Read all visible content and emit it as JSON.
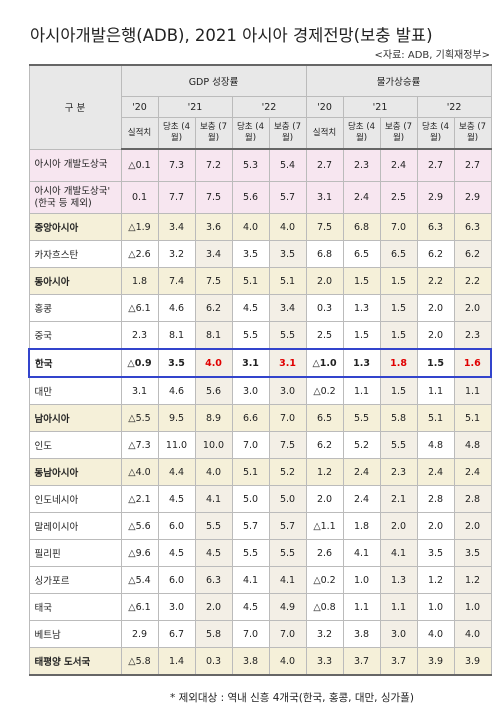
{
  "header": {
    "title": "아시아개발은행(ADB), 2021 아시아 경제전망(보충 발표)",
    "source": "<자료: ADB, 기획재정부>"
  },
  "table": {
    "corner": "구 분",
    "gdp": "GDP 성장률",
    "cpi": "물가상승률",
    "years": [
      "'20",
      "'21",
      "'22",
      "'20",
      "'21",
      "'22"
    ],
    "sub": [
      "실적치",
      "당초 (4월)",
      "보충 (7월)",
      "당초 (4월)",
      "보충 (7월)",
      "실적치",
      "당초 (4월)",
      "보충 (7월)",
      "당초 (4월)",
      "보충 (7월)"
    ],
    "rows": [
      [
        "아시아 개발도상국",
        "△0.1",
        "7.3",
        "7.2",
        "5.3",
        "5.4",
        "2.7",
        "2.3",
        "2.4",
        "2.7",
        "2.7"
      ],
      [
        "아시아 개발도상국' (한국 등 제외)",
        "0.1",
        "7.7",
        "7.5",
        "5.6",
        "5.7",
        "3.1",
        "2.4",
        "2.5",
        "2.9",
        "2.9"
      ],
      [
        "중앙아시아",
        "△1.9",
        "3.4",
        "3.6",
        "4.0",
        "4.0",
        "7.5",
        "6.8",
        "7.0",
        "6.3",
        "6.3"
      ],
      [
        "카자흐스탄",
        "△2.6",
        "3.2",
        "3.4",
        "3.5",
        "3.5",
        "6.8",
        "6.5",
        "6.5",
        "6.2",
        "6.2"
      ],
      [
        "동아시아",
        "1.8",
        "7.4",
        "7.5",
        "5.1",
        "5.1",
        "2.0",
        "1.5",
        "1.5",
        "2.2",
        "2.2"
      ],
      [
        "홍콩",
        "△6.1",
        "4.6",
        "6.2",
        "4.5",
        "3.4",
        "0.3",
        "1.3",
        "1.5",
        "2.0",
        "2.0"
      ],
      [
        "중국",
        "2.3",
        "8.1",
        "8.1",
        "5.5",
        "5.5",
        "2.5",
        "1.5",
        "1.5",
        "2.0",
        "2.3"
      ],
      [
        "한국",
        "△0.9",
        "3.5",
        "4.0",
        "3.1",
        "3.1",
        "△1.0",
        "1.3",
        "1.8",
        "1.5",
        "1.6"
      ],
      [
        "대만",
        "3.1",
        "4.6",
        "5.6",
        "3.0",
        "3.0",
        "△0.2",
        "1.1",
        "1.5",
        "1.1",
        "1.1"
      ],
      [
        "남아시아",
        "△5.5",
        "9.5",
        "8.9",
        "6.6",
        "7.0",
        "6.5",
        "5.5",
        "5.8",
        "5.1",
        "5.1"
      ],
      [
        "인도",
        "△7.3",
        "11.0",
        "10.0",
        "7.0",
        "7.5",
        "6.2",
        "5.2",
        "5.5",
        "4.8",
        "4.8"
      ],
      [
        "동남아시아",
        "△4.0",
        "4.4",
        "4.0",
        "5.1",
        "5.2",
        "1.2",
        "2.4",
        "2.3",
        "2.4",
        "2.4"
      ],
      [
        "인도네시아",
        "△2.1",
        "4.5",
        "4.1",
        "5.0",
        "5.0",
        "2.0",
        "2.4",
        "2.1",
        "2.8",
        "2.8"
      ],
      [
        "말레이시아",
        "△5.6",
        "6.0",
        "5.5",
        "5.7",
        "5.7",
        "△1.1",
        "1.8",
        "2.0",
        "2.0",
        "2.0"
      ],
      [
        "필리핀",
        "△9.6",
        "4.5",
        "4.5",
        "5.5",
        "5.5",
        "2.6",
        "4.1",
        "4.1",
        "3.5",
        "3.5"
      ],
      [
        "싱가포르",
        "△5.4",
        "6.0",
        "6.3",
        "4.1",
        "4.1",
        "△0.2",
        "1.0",
        "1.3",
        "1.2",
        "1.2"
      ],
      [
        "태국",
        "△6.1",
        "3.0",
        "2.0",
        "4.5",
        "4.9",
        "△0.8",
        "1.1",
        "1.1",
        "1.0",
        "1.0"
      ],
      [
        "베트남",
        "2.9",
        "6.7",
        "5.8",
        "7.0",
        "7.0",
        "3.2",
        "3.8",
        "3.0",
        "4.0",
        "4.0"
      ],
      [
        "태평양 도서국",
        "△5.8",
        "1.4",
        "0.3",
        "3.8",
        "4.0",
        "3.3",
        "3.7",
        "3.7",
        "3.9",
        "3.9"
      ]
    ]
  },
  "footnote": "* 제외대상 : 역내 신흥 4개국(한국, 홍콩, 대만, 싱가폴)"
}
